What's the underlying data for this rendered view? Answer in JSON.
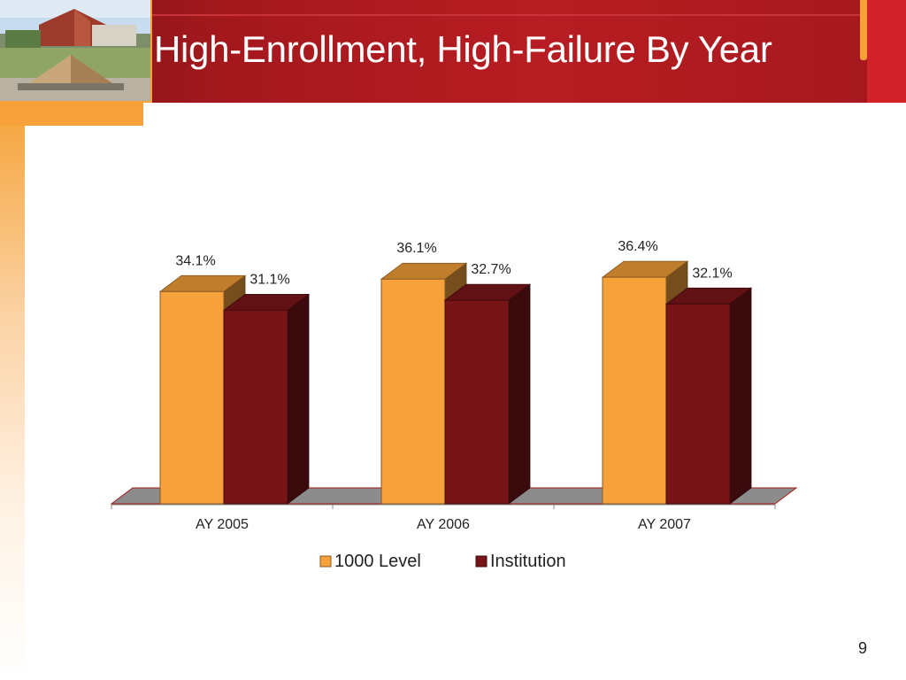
{
  "slide": {
    "title": "High-Enrollment, High-Failure By Year",
    "page_number": "9"
  },
  "colors": {
    "header_red": "#a4181d",
    "accent_orange": "#f6a13a",
    "series_1000": "#f6a13a",
    "series_institution": "#761417"
  },
  "chart_data": {
    "type": "bar",
    "style": "3d-clustered-column",
    "title": "",
    "xlabel": "",
    "ylabel": "",
    "categories": [
      "AY 2005",
      "AY 2006",
      "AY 2007"
    ],
    "series": [
      {
        "name": "1000 Level",
        "values": [
          34.1,
          36.1,
          36.4
        ],
        "labels": [
          "34.1%",
          "36.1%",
          "36.4%"
        ],
        "color": "#f6a13a"
      },
      {
        "name": "Institution",
        "values": [
          31.1,
          32.7,
          32.1
        ],
        "labels": [
          "31.1%",
          "32.7%",
          "32.1%"
        ],
        "color": "#761417"
      }
    ],
    "ylim": [
      0,
      45
    ],
    "grid": false,
    "legend_position": "bottom"
  }
}
